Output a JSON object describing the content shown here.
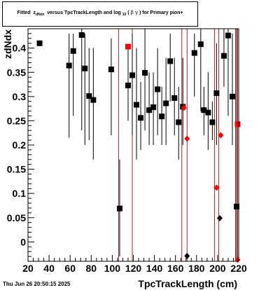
{
  "title": {
    "prefix": "Fitted",
    "z": "z",
    "z_sub": "dNdx",
    "middle": "versus TpcTrackLength and log",
    "log_sub": "10",
    "open_paren": "(",
    "beta_gamma": "β γ",
    "suffix": ") for Primary pion+"
  },
  "timestamp": "Thu Jun 26 20:50:15 2025",
  "chart_data": {
    "type": "scatter",
    "xlabel": "TpcTrackLength (cm)",
    "ylabel": "zdNdx",
    "xlim": [
      20,
      220
    ],
    "ylim": [
      -0.04,
      0.44
    ],
    "x_ticks": [
      20,
      40,
      60,
      80,
      100,
      120,
      140,
      160,
      180,
      200,
      220
    ],
    "y_ticks": [
      0,
      0.05,
      0.1,
      0.15,
      0.2,
      0.25,
      0.3,
      0.35,
      0.4
    ],
    "y_tick_labels": [
      "0",
      "0.05",
      "0.1",
      "0.15",
      "0.2",
      "0.25",
      "0.3",
      "0.35",
      "0.4"
    ],
    "colors": {
      "black_series": "#000000",
      "red_series": "#ff0000",
      "vertical_lines": "#b22222"
    },
    "vertical_lines": [
      106,
      119,
      166,
      171,
      197,
      201,
      217,
      219
    ],
    "series": [
      {
        "marker": "square",
        "color": "#000000",
        "points": [
          {
            "x": 31,
            "y": 0.41,
            "lo": 0.41,
            "hi": 0.41
          },
          {
            "x": 59,
            "y": 0.364,
            "lo": 0.215,
            "hi": 0.43
          },
          {
            "x": 63,
            "y": 0.394,
            "lo": 0.26,
            "hi": 0.43
          },
          {
            "x": 71,
            "y": 0.427,
            "lo": 0.23,
            "hi": 0.44
          },
          {
            "x": 74,
            "y": 0.358,
            "lo": 0.2,
            "hi": 0.43
          },
          {
            "x": 78,
            "y": 0.301,
            "lo": 0.21,
            "hi": 0.4
          },
          {
            "x": 82,
            "y": 0.293,
            "lo": 0.17,
            "hi": 0.4
          },
          {
            "x": 99,
            "y": 0.356,
            "lo": 0.22,
            "hi": 0.42
          },
          {
            "x": 107,
            "y": 0.069,
            "lo": -0.03,
            "hi": 0.17
          },
          {
            "x": 115,
            "y": 0.323,
            "lo": 0.25,
            "hi": 0.4
          },
          {
            "x": 119,
            "y": 0.344,
            "lo": 0.22,
            "hi": 0.43
          },
          {
            "x": 123,
            "y": 0.283,
            "lo": 0.17,
            "hi": 0.4
          },
          {
            "x": 127,
            "y": 0.256,
            "lo": 0.19,
            "hi": 0.33
          },
          {
            "x": 131,
            "y": 0.349,
            "lo": 0.23,
            "hi": 0.44
          },
          {
            "x": 135,
            "y": 0.272,
            "lo": 0.2,
            "hi": 0.35
          },
          {
            "x": 139,
            "y": 0.278,
            "lo": 0.2,
            "hi": 0.35
          },
          {
            "x": 143,
            "y": 0.315,
            "lo": 0.22,
            "hi": 0.4
          },
          {
            "x": 147,
            "y": 0.259,
            "lo": 0.2,
            "hi": 0.32
          },
          {
            "x": 151,
            "y": 0.286,
            "lo": 0.2,
            "hi": 0.38
          },
          {
            "x": 155,
            "y": 0.373,
            "lo": 0.29,
            "hi": 0.43
          },
          {
            "x": 159,
            "y": 0.297,
            "lo": 0.22,
            "hi": 0.38
          },
          {
            "x": 163,
            "y": 0.247,
            "lo": 0.17,
            "hi": 0.32
          },
          {
            "x": 167,
            "y": 0.279,
            "lo": 0.2,
            "hi": 0.38
          },
          {
            "x": 178,
            "y": 0.39,
            "lo": 0.3,
            "hi": 0.43
          },
          {
            "x": 184,
            "y": 0.408,
            "lo": 0.27,
            "hi": 0.44
          },
          {
            "x": 187,
            "y": 0.272,
            "lo": 0.22,
            "hi": 0.32
          },
          {
            "x": 191,
            "y": 0.267,
            "lo": 0.19,
            "hi": 0.35
          },
          {
            "x": 195,
            "y": 0.247,
            "lo": 0.21,
            "hi": 0.29
          },
          {
            "x": 199,
            "y": 0.307,
            "lo": 0.2,
            "hi": 0.41
          },
          {
            "x": 206,
            "y": 0.384,
            "lo": 0.32,
            "hi": 0.44
          },
          {
            "x": 210,
            "y": 0.426,
            "lo": 0.26,
            "hi": 0.44
          },
          {
            "x": 214,
            "y": 0.3,
            "lo": 0.2,
            "hi": 0.43
          },
          {
            "x": 218,
            "y": 0.073,
            "lo": -0.04,
            "hi": 0.44
          }
        ]
      },
      {
        "marker": "diamond",
        "color": "#000000",
        "points": [
          {
            "x": 171,
            "y": -0.029
          },
          {
            "x": 202,
            "y": 0.049
          }
        ]
      },
      {
        "marker": "square",
        "color": "#ff0000",
        "points": [
          {
            "x": 115,
            "y": 0.403
          },
          {
            "x": 219,
            "y": 0.243
          }
        ]
      },
      {
        "marker": "diamond",
        "color": "#ff0000",
        "points": [
          {
            "x": 168,
            "y": 0.277
          },
          {
            "x": 171,
            "y": 0.213
          },
          {
            "x": 199,
            "y": 0.112
          },
          {
            "x": 203,
            "y": 0.22
          },
          {
            "x": 219,
            "y": -0.037
          }
        ]
      }
    ]
  }
}
